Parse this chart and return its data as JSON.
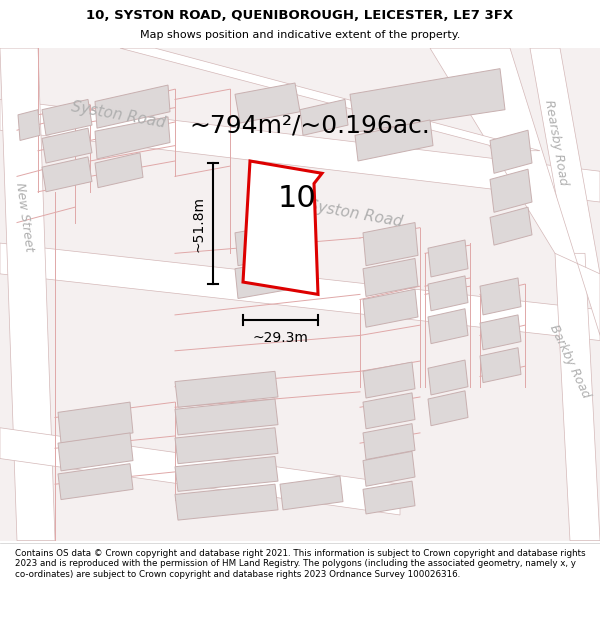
{
  "title_line1": "10, SYSTON ROAD, QUENIBOROUGH, LEICESTER, LE7 3FX",
  "title_line2": "Map shows position and indicative extent of the property.",
  "footer_text": "Contains OS data © Crown copyright and database right 2021. This information is subject to Crown copyright and database rights 2023 and is reproduced with the permission of HM Land Registry. The polygons (including the associated geometry, namely x, y co-ordinates) are subject to Crown copyright and database rights 2023 Ordnance Survey 100026316.",
  "area_label": "~794m²/~0.196ac.",
  "width_label": "~29.3m",
  "height_label": "~51.8m",
  "plot_number": "10",
  "map_bg": "#f5f0f0",
  "plot_outline_color": "#dd0000",
  "road_fill": "#e8dcdc",
  "road_line": "#d4b8b8",
  "bld_fill": "#ddd8d8",
  "bld_edge": "#c8b0b0",
  "parcel_line": "#e8a0a0",
  "road_label_color": "#b0b0b0",
  "dim_color": "#000000",
  "title_fontsize": 9.5,
  "subtitle_fontsize": 8,
  "area_fontsize": 18,
  "road_label_fontsize": 11,
  "plot_label_fontsize": 22,
  "footer_fontsize": 6.3
}
